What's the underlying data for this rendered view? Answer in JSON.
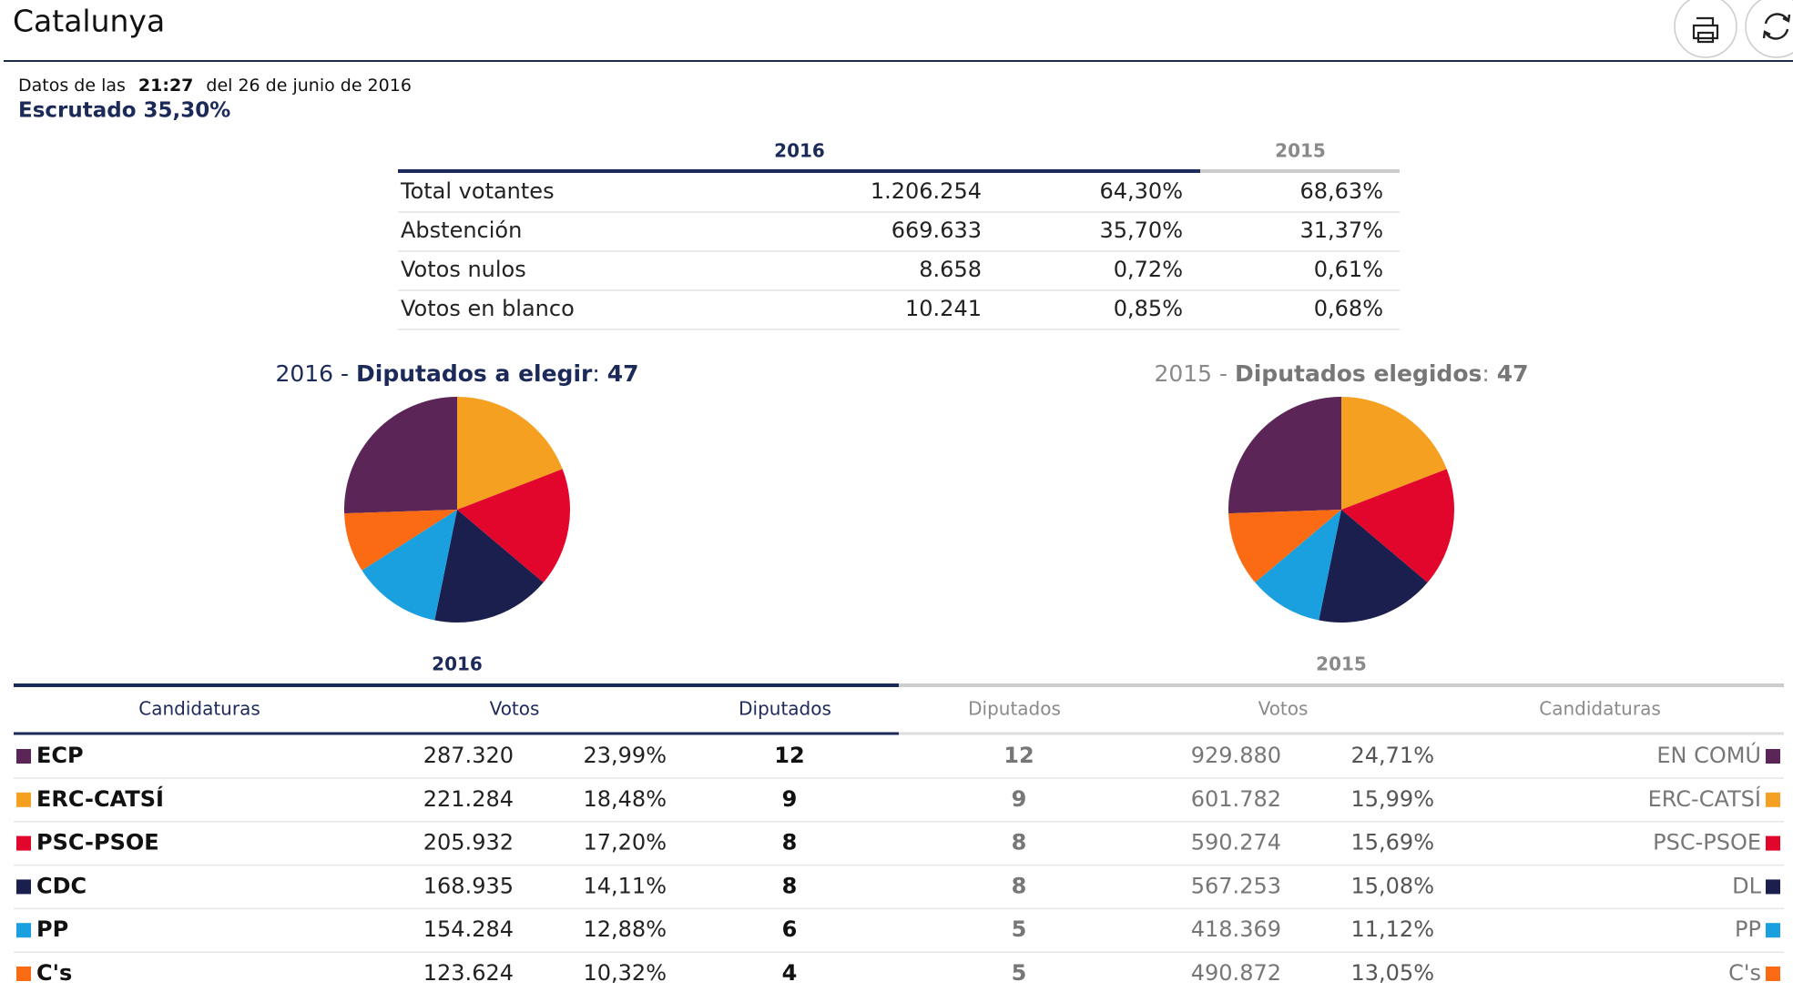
{
  "header": {
    "title": "Catalunya"
  },
  "meta": {
    "prefix": "Datos de las",
    "time": "21:27",
    "date": "del 26 de junio de 2016",
    "scrutiny": "Escrutado 35,30%"
  },
  "summary": {
    "years": [
      "2016",
      "2015"
    ],
    "rows": [
      [
        "Total votantes",
        "1.206.254",
        "64,30%",
        "68,63%"
      ],
      [
        "Abstención",
        "669.633",
        "35,70%",
        "31,37%"
      ],
      [
        "Votos nulos",
        "8.658",
        "0,72%",
        "0,61%"
      ],
      [
        "Votos en blanco",
        "10.241",
        "0,85%",
        "0,68%"
      ]
    ]
  },
  "pies": [
    {
      "year": "2016",
      "sep": " - ",
      "label": "Diputados a elegir",
      "colon": ": ",
      "total": "47"
    },
    {
      "year": "2015",
      "sep": " - ",
      "label": "Diputados elegidos",
      "colon": ": ",
      "total": "47"
    }
  ],
  "results": {
    "years": [
      "2016",
      "2015"
    ],
    "headers": [
      "Candidaturas",
      "Votos",
      "Diputados",
      "Diputados",
      "Votos",
      "Candidaturas"
    ],
    "rows": [
      {
        "name": "ECP",
        "votes": "287.320",
        "pct": "23,99%",
        "seats": 12,
        "seats_prev": 12,
        "votes_prev": "929.880",
        "pct_prev": "24,71%",
        "name_prev": "EN COMÚ",
        "color": "#5b2557"
      },
      {
        "name": "ERC-CATSÍ",
        "votes": "221.284",
        "pct": "18,48%",
        "seats": 9,
        "seats_prev": 9,
        "votes_prev": "601.782",
        "pct_prev": "15,99%",
        "name_prev": "ERC-CATSÍ",
        "color": "#f5a020"
      },
      {
        "name": "PSC-PSOE",
        "votes": "205.932",
        "pct": "17,20%",
        "seats": 8,
        "seats_prev": 8,
        "votes_prev": "590.274",
        "pct_prev": "15,69%",
        "name_prev": "PSC-PSOE",
        "color": "#e2062c"
      },
      {
        "name": "CDC",
        "votes": "168.935",
        "pct": "14,11%",
        "seats": 8,
        "seats_prev": 8,
        "votes_prev": "567.253",
        "pct_prev": "15,08%",
        "name_prev": "DL",
        "color": "#1b1f4e"
      },
      {
        "name": "PP",
        "votes": "154.284",
        "pct": "12,88%",
        "seats": 6,
        "seats_prev": 5,
        "votes_prev": "418.369",
        "pct_prev": "11,12%",
        "name_prev": "PP",
        "color": "#1a9fdf"
      },
      {
        "name": "C's",
        "votes": "123.624",
        "pct": "10,32%",
        "seats": 4,
        "seats_prev": 5,
        "votes_prev": "490.872",
        "pct_prev": "13,05%",
        "name_prev": "C's",
        "color": "#fa6b13"
      }
    ]
  }
}
